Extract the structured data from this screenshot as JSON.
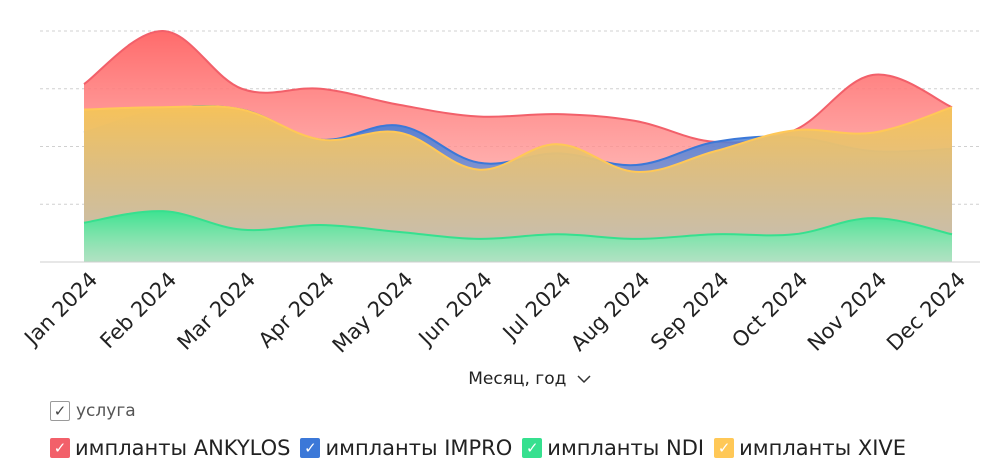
{
  "chart_data": {
    "type": "area",
    "categories": [
      "Jan 2024",
      "Feb 2024",
      "Mar 2024",
      "Apr 2024",
      "May 2024",
      "Jun 2024",
      "Jul 2024",
      "Aug 2024",
      "Sep 2024",
      "Oct 2024",
      "Nov 2024",
      "Dec 2024"
    ],
    "xlabel": "Месяц, год",
    "ylim": [
      0,
      100
    ],
    "grid": true,
    "legend_title": "услуга",
    "legend_position": "bottom-left",
    "series": [
      {
        "name": "имплanты ANKYLOS",
        "color": "#f2606a",
        "values": [
          77,
          100,
          75,
          75,
          68,
          63,
          64,
          61,
          52,
          57,
          81,
          67
        ]
      },
      {
        "name": "импланты IMPRO",
        "color": "#3b78d8",
        "values": [
          56,
          66,
          66,
          53,
          59,
          43,
          47,
          42,
          52,
          54,
          48,
          49
        ]
      },
      {
        "name": "импланты NDI",
        "color": "#36e08f",
        "values": [
          17,
          22,
          14,
          16,
          13,
          10,
          12,
          10,
          12,
          12,
          19,
          12
        ]
      },
      {
        "name": "импланты XIVE",
        "color": "#ffc857",
        "values": [
          66,
          67,
          66,
          53,
          56,
          40,
          51,
          39,
          48,
          57,
          56,
          67
        ]
      }
    ]
  }
}
